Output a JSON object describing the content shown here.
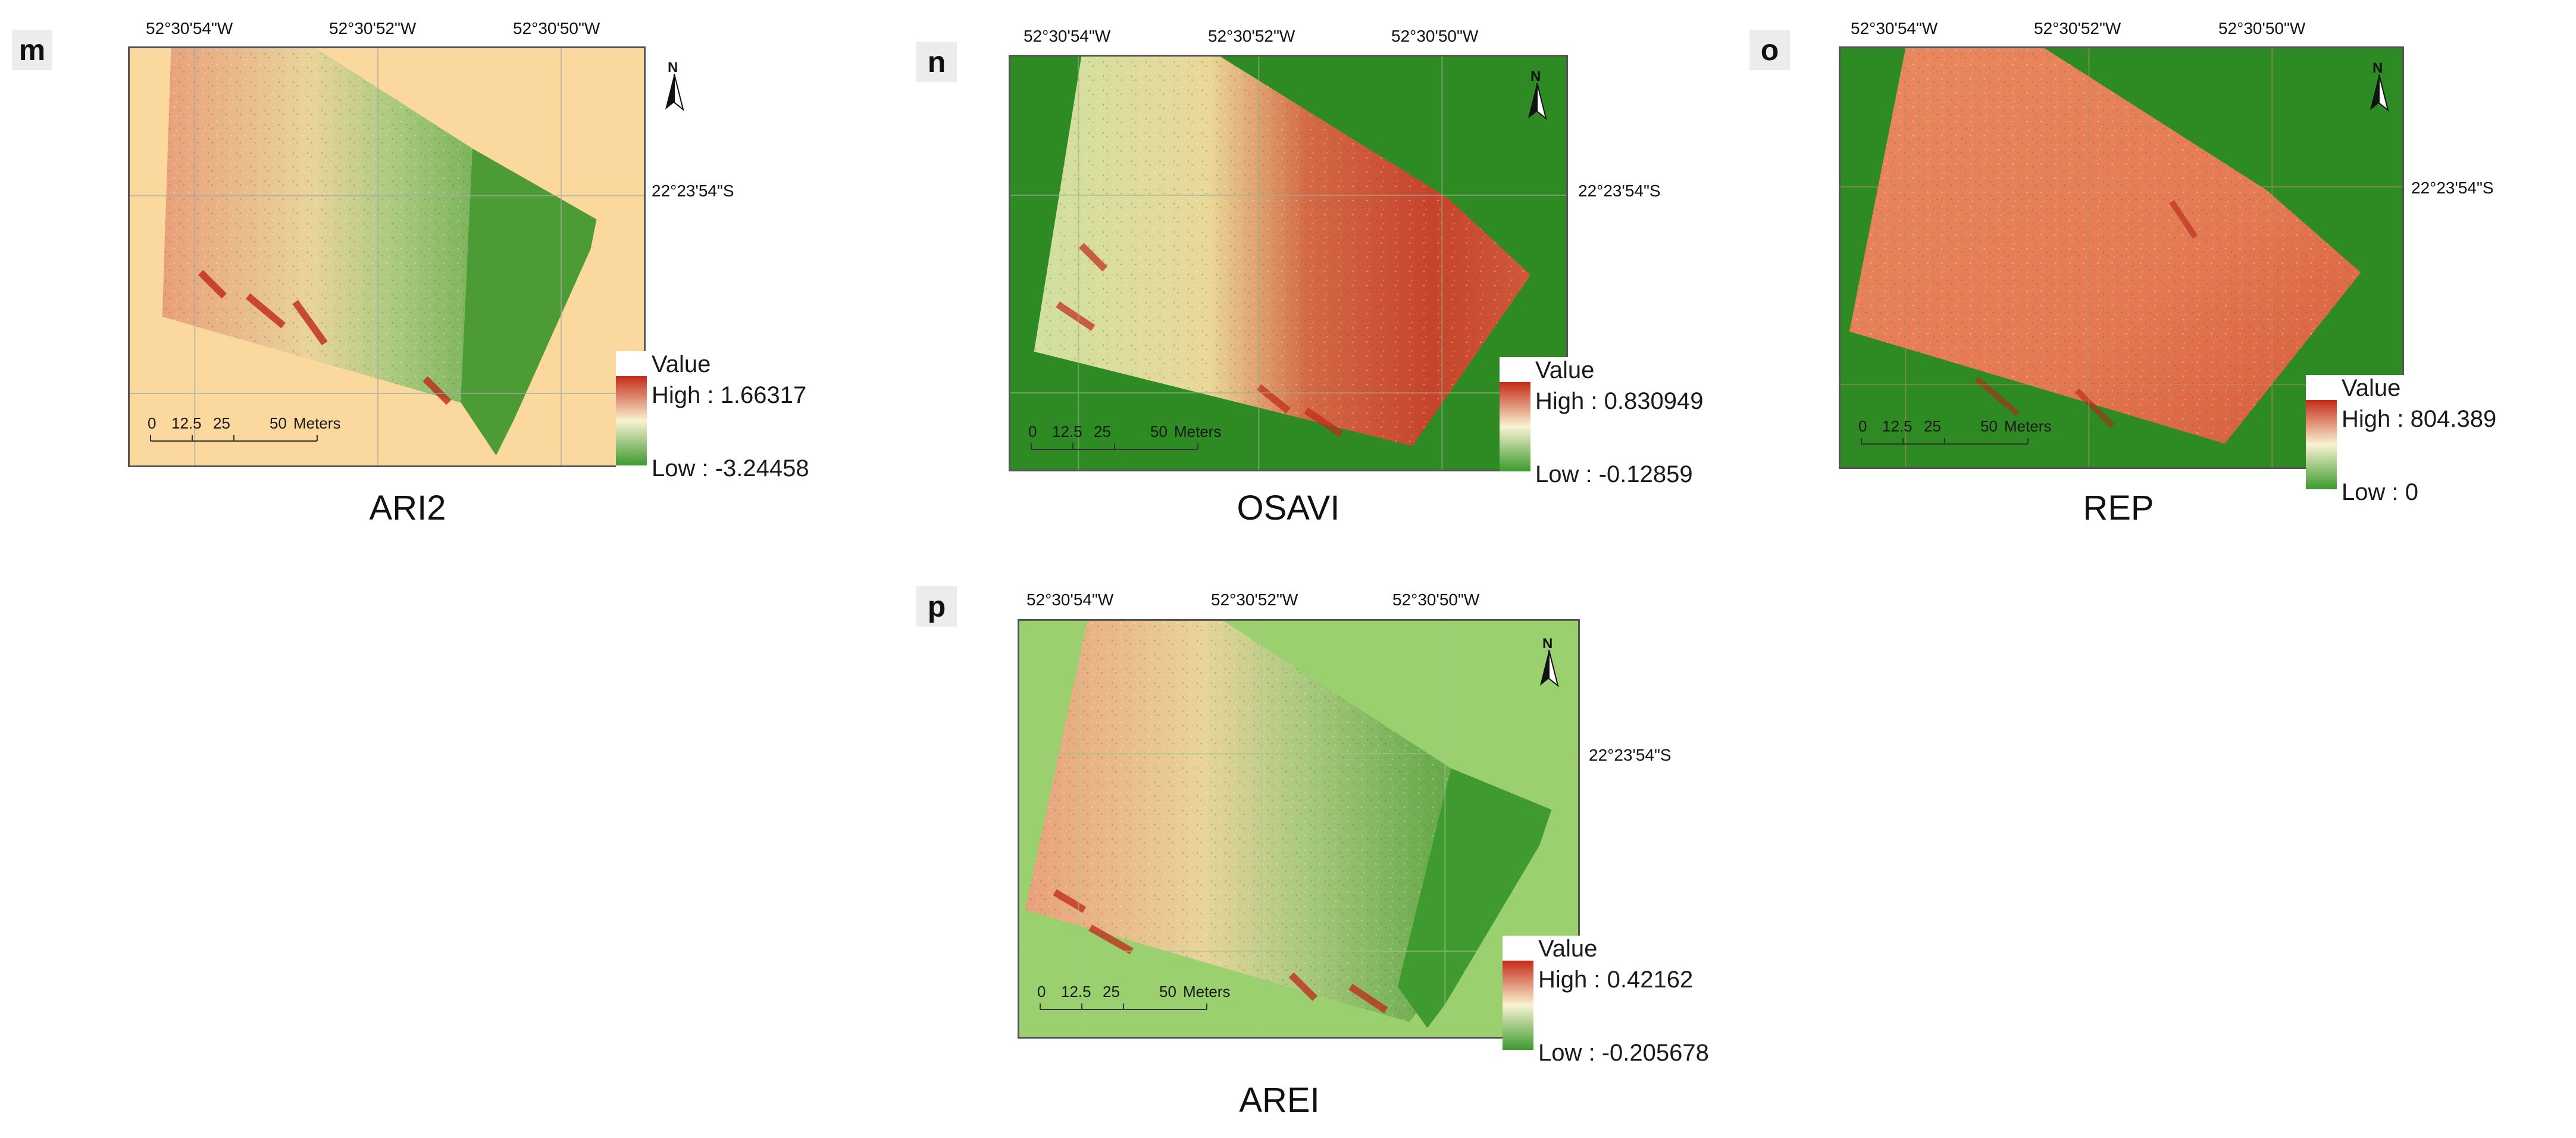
{
  "colors": {
    "high_red": "#c62a18",
    "mid_yellow": "#f3e8a8",
    "low_green": "#3d9a2f"
  },
  "coordinates": {
    "lon_1": "52°30'54\"W",
    "lon_2": "52°30'52\"W",
    "lon_3": "52°30'50\"W",
    "lat_1": "22°23'54\"S"
  },
  "scale_bar": {
    "labels": [
      "0",
      "12.5",
      "25",
      "50"
    ],
    "unit": "Meters"
  },
  "north_arrow": "N",
  "panels": [
    {
      "letter": "m",
      "index": "ARI2",
      "legend_title": "Value",
      "high": "High : 1.66317",
      "low": "Low : -3.24458",
      "background": "#fad89e",
      "field_style": "mixed-green-east"
    },
    {
      "letter": "n",
      "index": "OSAVI",
      "legend_title": "Value",
      "high": "High : 0.830949",
      "low": "Low : -0.12859",
      "background": "#2e8b24",
      "field_style": "red-east"
    },
    {
      "letter": "o",
      "index": "REP",
      "legend_title": "Value",
      "high": "High : 804.389",
      "low": "Low : 0",
      "background": "#2e8b24",
      "field_style": "uniform-red"
    },
    {
      "letter": "p",
      "index": "AREI",
      "legend_title": "Value",
      "high": "High : 0.42162",
      "low": "Low : -0.205678",
      "background": "#9bd06e",
      "field_style": "mixed-green-east"
    }
  ]
}
